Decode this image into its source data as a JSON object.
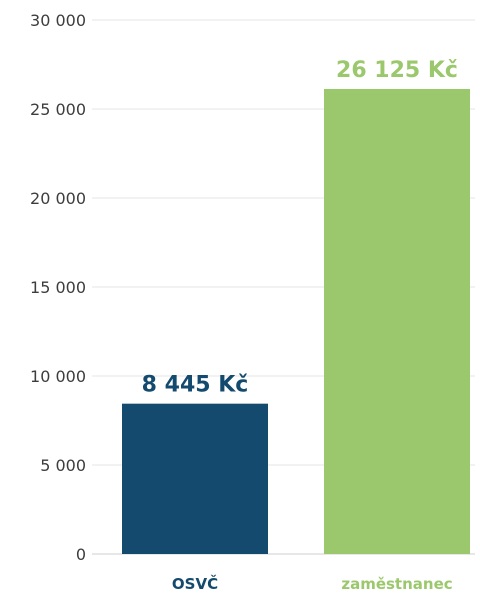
{
  "chart_data": {
    "type": "bar",
    "categories": [
      "OSVČ",
      "zaměstnanec"
    ],
    "values": [
      8445,
      26125
    ],
    "data_labels": [
      "8 445 Kč",
      "26 125 Kč"
    ],
    "colors": [
      "#134a6e",
      "#9bc86c"
    ],
    "ylim": [
      0,
      30000
    ],
    "yticks": [
      0,
      5000,
      10000,
      15000,
      20000,
      25000,
      30000
    ],
    "ytick_labels": [
      "0",
      "5 000",
      "10 000",
      "15 000",
      "20 000",
      "25 000",
      "30 000"
    ],
    "grid": true,
    "legend": "none"
  }
}
